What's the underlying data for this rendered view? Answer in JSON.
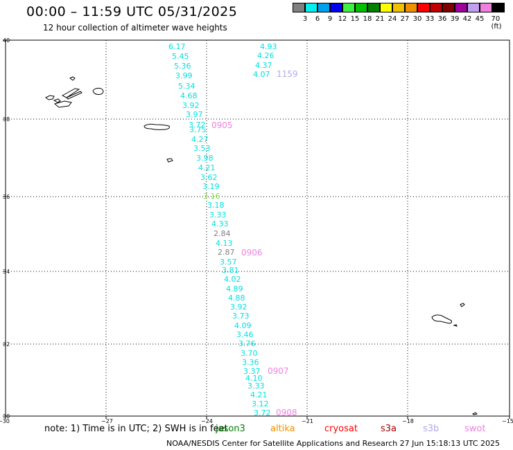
{
  "title": "00:00 – 11:59 UTC 05/31/2025",
  "subtitle": "12 hour collection of altimeter wave heights",
  "legend": {
    "colors": [
      "#808080",
      "#00f0f0",
      "#00a0f0",
      "#0000f0",
      "#40f040",
      "#00c000",
      "#008000",
      "#ffff00",
      "#f0c000",
      "#f09000",
      "#ff0000",
      "#c00000",
      "#800000",
      "#a000a0",
      "#c0a0f0",
      "#f080e0",
      "#000000"
    ],
    "ticks": [
      "3",
      "6",
      "9",
      "12",
      "15",
      "18",
      "21",
      "24",
      "27",
      "30",
      "33",
      "36",
      "39",
      "42",
      "45",
      "70 (ft)"
    ]
  },
  "axes": {
    "lat_labels": [
      "40",
      "38",
      "36",
      "34",
      "32",
      "30"
    ],
    "lon_labels": [
      "−30",
      "−27",
      "−24",
      "−21",
      "−18",
      "−15"
    ]
  },
  "tracks": [
    {
      "color": "#00e0e0",
      "values": [
        "4.93",
        "4.26",
        "4.37",
        "4.07"
      ]
    },
    {
      "color": "#00e0e0",
      "values": [
        "6.17",
        "5.45",
        "5.36",
        "3.99",
        "5.34",
        "4.68",
        "3.92",
        "3.97",
        "3.72",
        "3.75",
        "4.27",
        "3.53",
        "3.98",
        "4.21",
        "3.62",
        "3.19"
      ]
    },
    {
      "color": "#80e040",
      "values": [
        "3.16"
      ]
    },
    {
      "color": "#00e0e0",
      "values": [
        "3.18",
        "3.33",
        "4.33"
      ]
    },
    {
      "color": "#808080",
      "values": [
        "2.84"
      ]
    },
    {
      "color": "#00e0e0",
      "values": [
        "4.13"
      ]
    },
    {
      "color": "#808080",
      "values": [
        "2.87"
      ]
    },
    {
      "color": "#00e0e0",
      "values": [
        "3.57",
        "3.81",
        "4.02",
        "4.89",
        "4.88",
        "3.92",
        "3.73",
        "4.09",
        "3.46",
        "3.76",
        "3.70",
        "3.36",
        "3.37",
        "4.10",
        "3.33",
        "4.21",
        "3.12",
        "3.72"
      ]
    }
  ],
  "time_stamps": [
    {
      "text": "1159",
      "color": "#b0a8f0"
    },
    {
      "text": "0905",
      "color": "#f080e0"
    },
    {
      "text": "0906",
      "color": "#f080e0"
    },
    {
      "text": "0907",
      "color": "#f080e0"
    },
    {
      "text": "0908",
      "color": "#f080e0"
    }
  ],
  "note": "note: 1) Time is in UTC; 2) SWH is in feet",
  "missions": [
    {
      "name": "jason3",
      "color": "#008000"
    },
    {
      "name": "altika",
      "color": "#f09000"
    },
    {
      "name": "cryosat",
      "color": "#ff0000"
    },
    {
      "name": "s3a",
      "color": "#a00000"
    },
    {
      "name": "s3b",
      "color": "#b0a8f0"
    },
    {
      "name": "swot",
      "color": "#f080e0"
    }
  ],
  "footer": "NOAA/NESDIS Center for Satellite Applications and Research   27 Jun 15:18:13 UTC 2025"
}
